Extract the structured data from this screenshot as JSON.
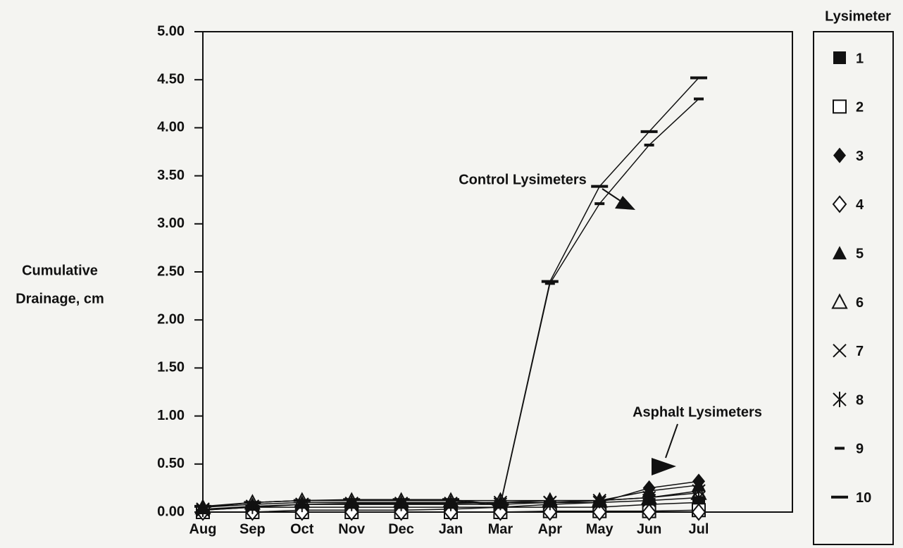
{
  "chart_data": {
    "type": "line",
    "ylabel": [
      "Cumulative",
      "Drainage, cm"
    ],
    "legend_title": "Lysimeter",
    "annotations": [
      "Control Lysimeters",
      "Asphalt Lysimeters"
    ],
    "categories": [
      "Aug",
      "Sep",
      "Oct",
      "Nov",
      "Dec",
      "Jan",
      "Mar",
      "Apr",
      "May",
      "Jun",
      "Jul"
    ],
    "ylim": [
      0,
      5
    ],
    "yticks": [
      {
        "value": 0,
        "label": "0.00"
      },
      {
        "value": 0.5,
        "label": "0.50"
      },
      {
        "value": 1,
        "label": "1.00"
      },
      {
        "value": 1.5,
        "label": "1.50"
      },
      {
        "value": 2,
        "label": "2.00"
      },
      {
        "value": 2.5,
        "label": "2.50"
      },
      {
        "value": 3,
        "label": "3.00"
      },
      {
        "value": 3.5,
        "label": "3.50"
      },
      {
        "value": 4,
        "label": "4.00"
      },
      {
        "value": 4.5,
        "label": "4.50"
      },
      {
        "value": 5,
        "label": "5.00"
      }
    ],
    "legend": "right",
    "series": [
      {
        "name": "1",
        "color": "#111111",
        "marker": "square",
        "values": [
          0.0,
          0.0,
          0.02,
          0.02,
          0.02,
          0.03,
          0.05,
          0.05,
          0.05,
          0.08,
          0.1
        ]
      },
      {
        "name": "2",
        "color": "#111111",
        "marker": "square-open",
        "values": [
          0.0,
          0.0,
          0.0,
          0.0,
          0.0,
          0.0,
          0.0,
          0.01,
          0.01,
          0.01,
          0.02
        ]
      },
      {
        "name": "3",
        "color": "#111111",
        "marker": "diamond",
        "values": [
          0.02,
          0.05,
          0.05,
          0.05,
          0.05,
          0.05,
          0.05,
          0.08,
          0.1,
          0.25,
          0.32
        ]
      },
      {
        "name": "4",
        "color": "#111111",
        "marker": "diamond-open",
        "values": [
          0.0,
          0.0,
          0.0,
          0.0,
          0.0,
          0.0,
          0.0,
          0.0,
          0.0,
          0.0,
          0.0
        ]
      },
      {
        "name": "5",
        "color": "#111111",
        "marker": "triangle",
        "values": [
          0.05,
          0.08,
          0.1,
          0.1,
          0.1,
          0.1,
          0.1,
          0.12,
          0.12,
          0.22,
          0.28
        ]
      },
      {
        "name": "6",
        "color": "#111111",
        "marker": "triangle-open",
        "values": [
          0.05,
          0.1,
          0.12,
          0.12,
          0.12,
          0.12,
          0.12,
          0.12,
          0.12,
          0.15,
          0.2
        ]
      },
      {
        "name": "7",
        "color": "#111111",
        "marker": "x",
        "values": [
          0.02,
          0.05,
          0.08,
          0.08,
          0.08,
          0.08,
          0.08,
          0.1,
          0.1,
          0.12,
          0.15
        ]
      },
      {
        "name": "8",
        "color": "#111111",
        "marker": "asterisk",
        "values": [
          0.03,
          0.06,
          0.08,
          0.09,
          0.09,
          0.09,
          0.1,
          0.1,
          0.12,
          0.15,
          0.22
        ]
      },
      {
        "name": "9",
        "color": "#111111",
        "marker": "dash-short",
        "values": [
          0.05,
          0.1,
          0.12,
          0.12,
          0.12,
          0.12,
          0.07,
          2.38,
          3.21,
          3.82,
          4.3
        ]
      },
      {
        "name": "10",
        "color": "#111111",
        "marker": "dash",
        "values": [
          0.06,
          0.1,
          0.12,
          0.13,
          0.13,
          0.13,
          0.08,
          2.4,
          3.39,
          3.96,
          4.52
        ]
      }
    ]
  }
}
